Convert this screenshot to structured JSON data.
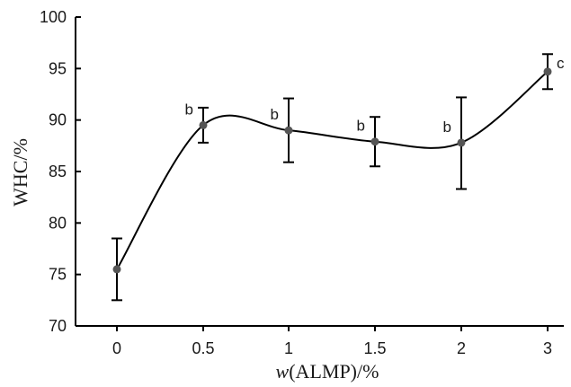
{
  "chart_data": {
    "type": "line",
    "title": "",
    "xlabel_italic": "w",
    "xlabel_rest": "(ALMP)/%",
    "ylabel": "WHC/%",
    "categories": [
      "0",
      "0.5",
      "1",
      "1.5",
      "2",
      "3"
    ],
    "ylim": [
      70,
      100
    ],
    "yticks": [
      70,
      75,
      80,
      85,
      90,
      95,
      100
    ],
    "grid": false,
    "smooth": true,
    "series": [
      {
        "values": [
          75.5,
          89.5,
          89.0,
          87.9,
          87.8,
          94.7
        ],
        "error_upper": [
          78.5,
          91.2,
          92.1,
          90.3,
          92.2,
          96.4
        ],
        "error_lower": [
          72.5,
          87.8,
          85.9,
          85.5,
          83.3,
          93.0
        ],
        "significance": [
          "",
          "b",
          "b",
          "b",
          "b",
          "c"
        ]
      }
    ],
    "colors": {
      "line": "#000000",
      "marker": "#555555",
      "axis": "#000000"
    }
  }
}
